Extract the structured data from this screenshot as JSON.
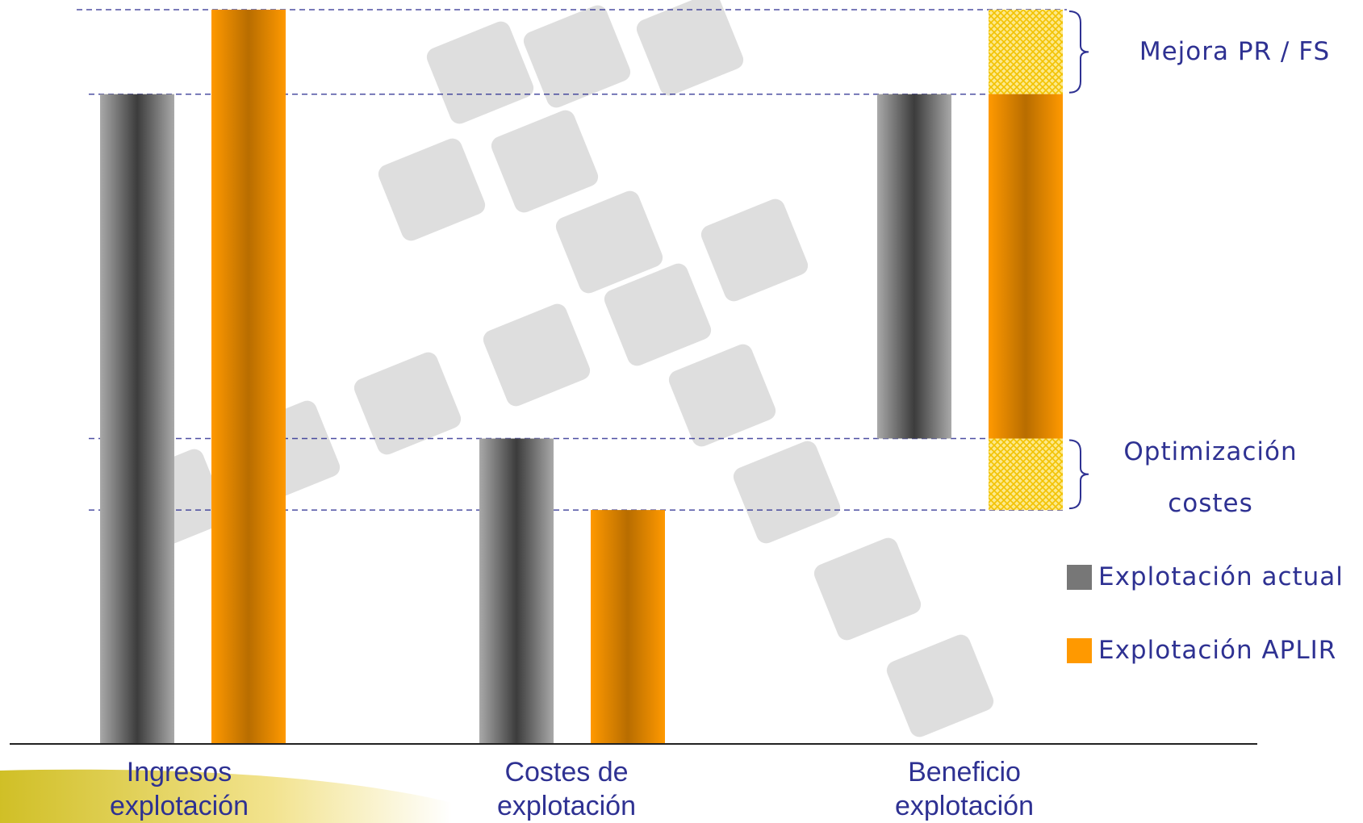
{
  "colors": {
    "actual": "#777777",
    "aplir": "#ff9900",
    "improvement": "#f8d848",
    "text": "#2e3192",
    "guide": "#2e3192"
  },
  "chart_data": {
    "type": "bar",
    "categories": [
      "Ingresos explotación",
      "Costes de explotación",
      "Beneficio explotación"
    ],
    "category_lines": [
      [
        "Ingresos",
        "explotación"
      ],
      [
        "Costes de",
        "explotación"
      ],
      [
        "Beneficio",
        "explotación"
      ]
    ],
    "series": [
      {
        "name": "Explotación actual",
        "values": [
          [
            0,
            100
          ],
          [
            0,
            47
          ],
          [
            47,
            100
          ]
        ]
      },
      {
        "name": "Explotación APLIR",
        "values": [
          [
            0,
            113
          ],
          [
            0,
            36
          ],
          [
            36,
            113
          ]
        ]
      }
    ],
    "improvements": [
      {
        "label": "Mejora PR / FS",
        "range": [
          100,
          113
        ]
      },
      {
        "label_lines": [
          "Optimización",
          "costes"
        ],
        "range": [
          36,
          47
        ]
      }
    ],
    "reference_levels": [
      113,
      100,
      47,
      36
    ],
    "ylim": [
      0,
      113
    ],
    "legend": {
      "position": "right",
      "entries": [
        "Explotación actual",
        "Explotación APLIR"
      ]
    }
  }
}
